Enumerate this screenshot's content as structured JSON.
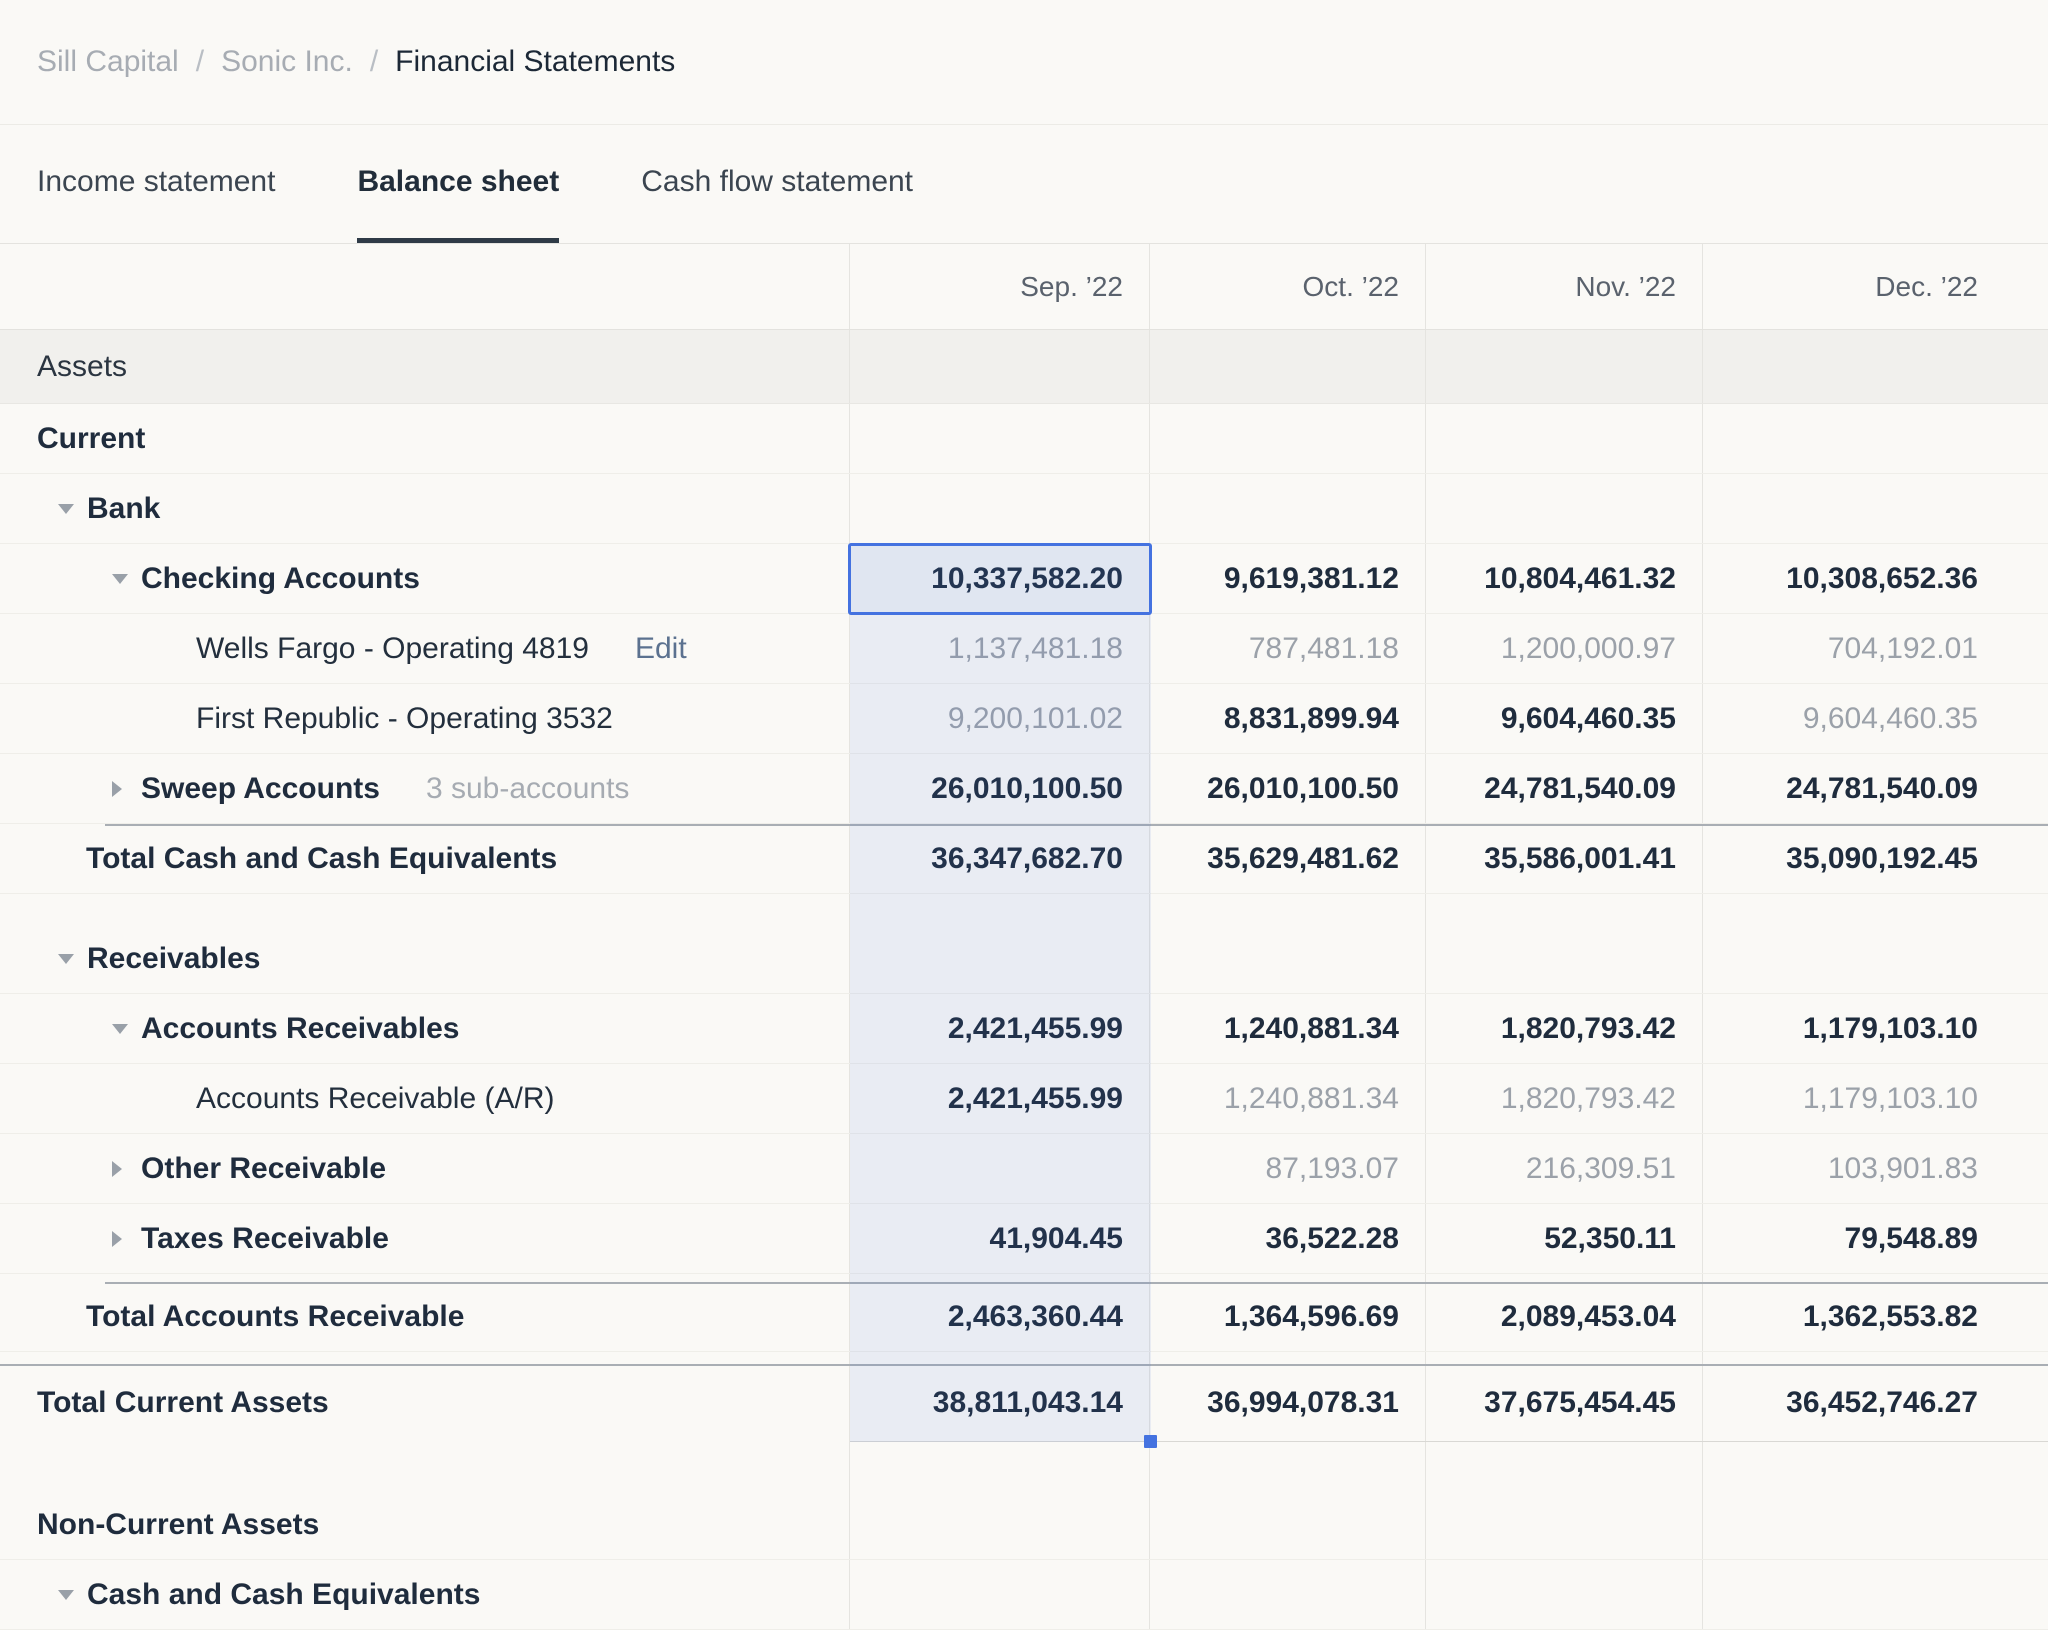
{
  "breadcrumb": {
    "separator": "/",
    "items": [
      {
        "label": "Sill Capital",
        "current": false
      },
      {
        "label": "Sonic Inc.",
        "current": false
      },
      {
        "label": "Financial Statements",
        "current": true
      }
    ]
  },
  "tabs": [
    {
      "label": "Income statement",
      "active": false
    },
    {
      "label": "Balance sheet",
      "active": true
    },
    {
      "label": "Cash flow statement",
      "active": false
    }
  ],
  "table": {
    "column_headers": [
      "Sep. ’22",
      "Oct. ’22",
      "Nov. ’22",
      "Dec. ’22"
    ],
    "rows": [
      {
        "id": "assets",
        "kind": "section",
        "level": 0,
        "label": "Assets",
        "values": [
          "",
          "",
          "",
          ""
        ]
      },
      {
        "id": "current",
        "kind": "heading",
        "level": 0,
        "label": "Current",
        "values": [
          "",
          "",
          "",
          ""
        ]
      },
      {
        "id": "bank",
        "kind": "group",
        "level": 1,
        "caret": "down",
        "label": "Bank",
        "values": [
          "",
          "",
          "",
          ""
        ]
      },
      {
        "id": "checking-accounts",
        "kind": "line",
        "level": 2,
        "caret": "down",
        "label": "Checking Accounts",
        "values": [
          "10,337,582.20",
          "9,619,381.12",
          "10,804,461.32",
          "10,308,652.36"
        ],
        "muted": [
          false,
          false,
          false,
          false
        ]
      },
      {
        "id": "wells-fargo-operating-4819",
        "kind": "subline",
        "level": 3,
        "label": "Wells Fargo - Operating 4819",
        "action": "Edit",
        "values": [
          "1,137,481.18",
          "787,481.18",
          "1,200,000.97",
          "704,192.01"
        ],
        "muted": [
          true,
          true,
          true,
          true
        ]
      },
      {
        "id": "first-republic-operating-3532",
        "kind": "subline",
        "level": 3,
        "label": "First Republic - Operating 3532",
        "values": [
          "9,200,101.02",
          "8,831,899.94",
          "9,604,460.35",
          "9,604,460.35"
        ],
        "muted": [
          true,
          false,
          false,
          true
        ]
      },
      {
        "id": "sweep-accounts",
        "kind": "line",
        "level": 2,
        "caret": "right",
        "label": "Sweep Accounts",
        "note": "3 sub-accounts",
        "values": [
          "26,010,100.50",
          "26,010,100.50",
          "24,781,540.09",
          "24,781,540.09"
        ],
        "muted": [
          false,
          false,
          false,
          false
        ]
      },
      {
        "id": "total-cash-and-cash-equivalents",
        "kind": "total",
        "level": 1,
        "rule": "indent",
        "label": "Total Cash and Cash Equivalents",
        "values": [
          "36,347,682.70",
          "35,629,481.62",
          "35,586,001.41",
          "35,090,192.45"
        ],
        "muted": [
          false,
          false,
          false,
          false
        ]
      },
      {
        "kind": "spacer",
        "size": "l"
      },
      {
        "id": "receivables",
        "kind": "group",
        "level": 1,
        "caret": "down",
        "label": "Receivables",
        "values": [
          "",
          "",
          "",
          ""
        ]
      },
      {
        "id": "accounts-receivables",
        "kind": "line",
        "level": 2,
        "caret": "down",
        "label": "Accounts Receivables",
        "values": [
          "2,421,455.99",
          "1,240,881.34",
          "1,820,793.42",
          "1,179,103.10"
        ],
        "muted": [
          false,
          false,
          false,
          false
        ]
      },
      {
        "id": "accounts-receivable-ar",
        "kind": "subline",
        "level": 3,
        "label": "Accounts Receivable (A/R)",
        "values": [
          "2,421,455.99",
          "1,240,881.34",
          "1,820,793.42",
          "1,179,103.10"
        ],
        "muted": [
          false,
          true,
          true,
          true
        ]
      },
      {
        "id": "other-receivable",
        "kind": "line",
        "level": 2,
        "caret": "right",
        "label": "Other Receivable",
        "values": [
          "",
          "87,193.07",
          "216,309.51",
          "103,901.83"
        ],
        "muted": [
          false,
          true,
          true,
          true
        ]
      },
      {
        "id": "taxes-receivable",
        "kind": "line",
        "level": 2,
        "caret": "right",
        "label": "Taxes Receivable",
        "values": [
          "41,904.45",
          "36,522.28",
          "52,350.11",
          "79,548.89"
        ],
        "muted": [
          false,
          false,
          false,
          false
        ]
      },
      {
        "kind": "spacer",
        "size": "s"
      },
      {
        "id": "total-accounts-receivable",
        "kind": "total",
        "level": 1,
        "rule": "indent",
        "label": "Total Accounts Receivable",
        "values": [
          "2,463,360.44",
          "1,364,596.69",
          "2,089,453.04",
          "1,362,553.82"
        ],
        "muted": [
          false,
          false,
          false,
          false
        ]
      },
      {
        "kind": "spacer",
        "size": "m"
      },
      {
        "id": "total-current-assets",
        "kind": "grand-total",
        "level": 0,
        "rule": "full",
        "label": "Total Current Assets",
        "values": [
          "38,811,043.14",
          "36,994,078.31",
          "37,675,454.45",
          "36,452,746.27"
        ],
        "muted": [
          false,
          false,
          false,
          false
        ]
      },
      {
        "kind": "spacer",
        "size": "xl"
      },
      {
        "id": "non-current-assets",
        "kind": "heading",
        "level": 0,
        "label": "Non-Current Assets",
        "values": [
          "",
          "",
          "",
          ""
        ]
      },
      {
        "id": "cash-and-cash-equivalents",
        "kind": "group",
        "level": 1,
        "caret": "down",
        "label": "Cash and Cash Equivalents",
        "values": [
          "",
          "",
          "",
          ""
        ]
      }
    ]
  },
  "selection": {
    "column_index": 0,
    "anchor_row_id": "checking-accounts",
    "end_row_id": "total-current-assets"
  },
  "colors": {
    "accent_blue": "#4472E0",
    "selection_fill": "rgba(68,114,224,0.09)",
    "section_row_bg": "#F1F0ED",
    "muted_text": "#9BA1A9",
    "dark_text": "#1F2C3D",
    "total_rule": "#A9AEB4"
  }
}
